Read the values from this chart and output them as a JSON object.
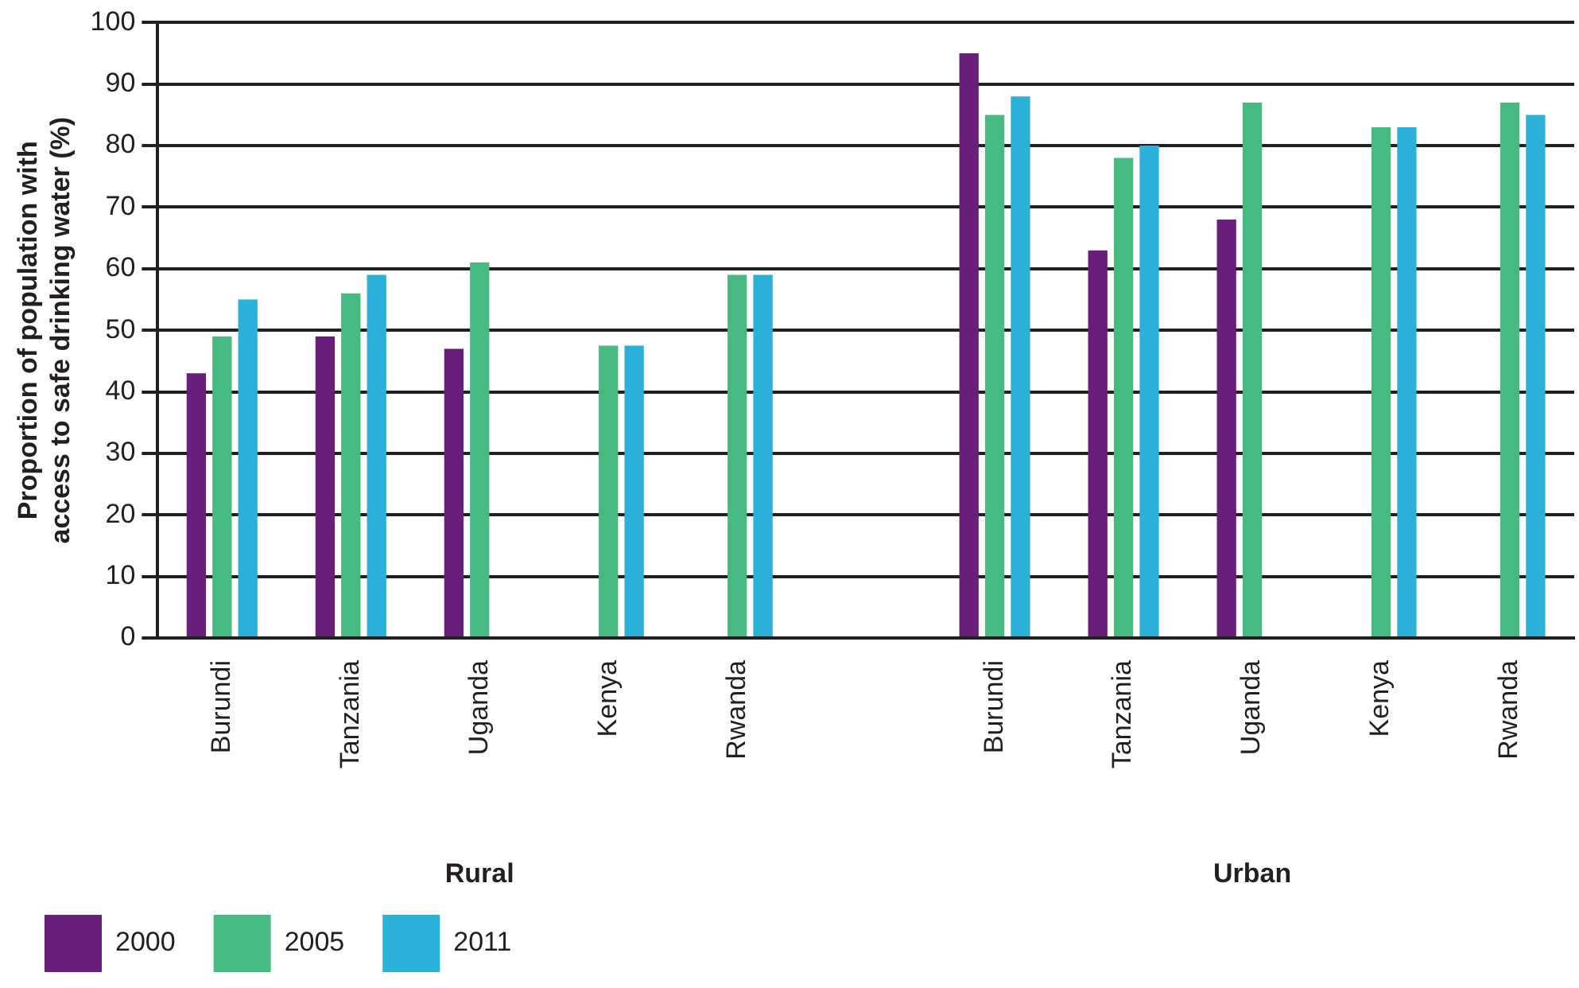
{
  "chart_data": {
    "type": "bar",
    "ylabel": "Proportion of population with access to safe drinking water (%)",
    "categories": [
      "Burundi",
      "Tanzania",
      "Uganda",
      "Kenya",
      "Rwanda",
      null,
      "Burundi",
      "Tanzania",
      "Uganda",
      "Kenya",
      "Rwanda"
    ],
    "series": [
      {
        "name": "2000",
        "color": "#671f7a",
        "values": [
          43,
          49,
          47,
          null,
          null,
          null,
          95,
          63,
          68,
          null,
          null
        ]
      },
      {
        "name": "2005",
        "color": "#47ba82",
        "values": [
          49,
          56,
          61,
          47.5,
          59,
          null,
          85,
          78,
          87,
          83,
          87
        ]
      },
      {
        "name": "2011",
        "color": "#2ab0d9",
        "values": [
          55,
          59,
          null,
          47.5,
          59,
          null,
          88,
          80,
          null,
          83,
          85
        ]
      }
    ],
    "ylim": [
      0,
      100
    ],
    "yticks": [
      0,
      10,
      20,
      30,
      40,
      50,
      60,
      70,
      80,
      90,
      100
    ],
    "grid": "y",
    "legend": "bottom left",
    "annotations": [
      "Rural",
      "Urban"
    ]
  }
}
